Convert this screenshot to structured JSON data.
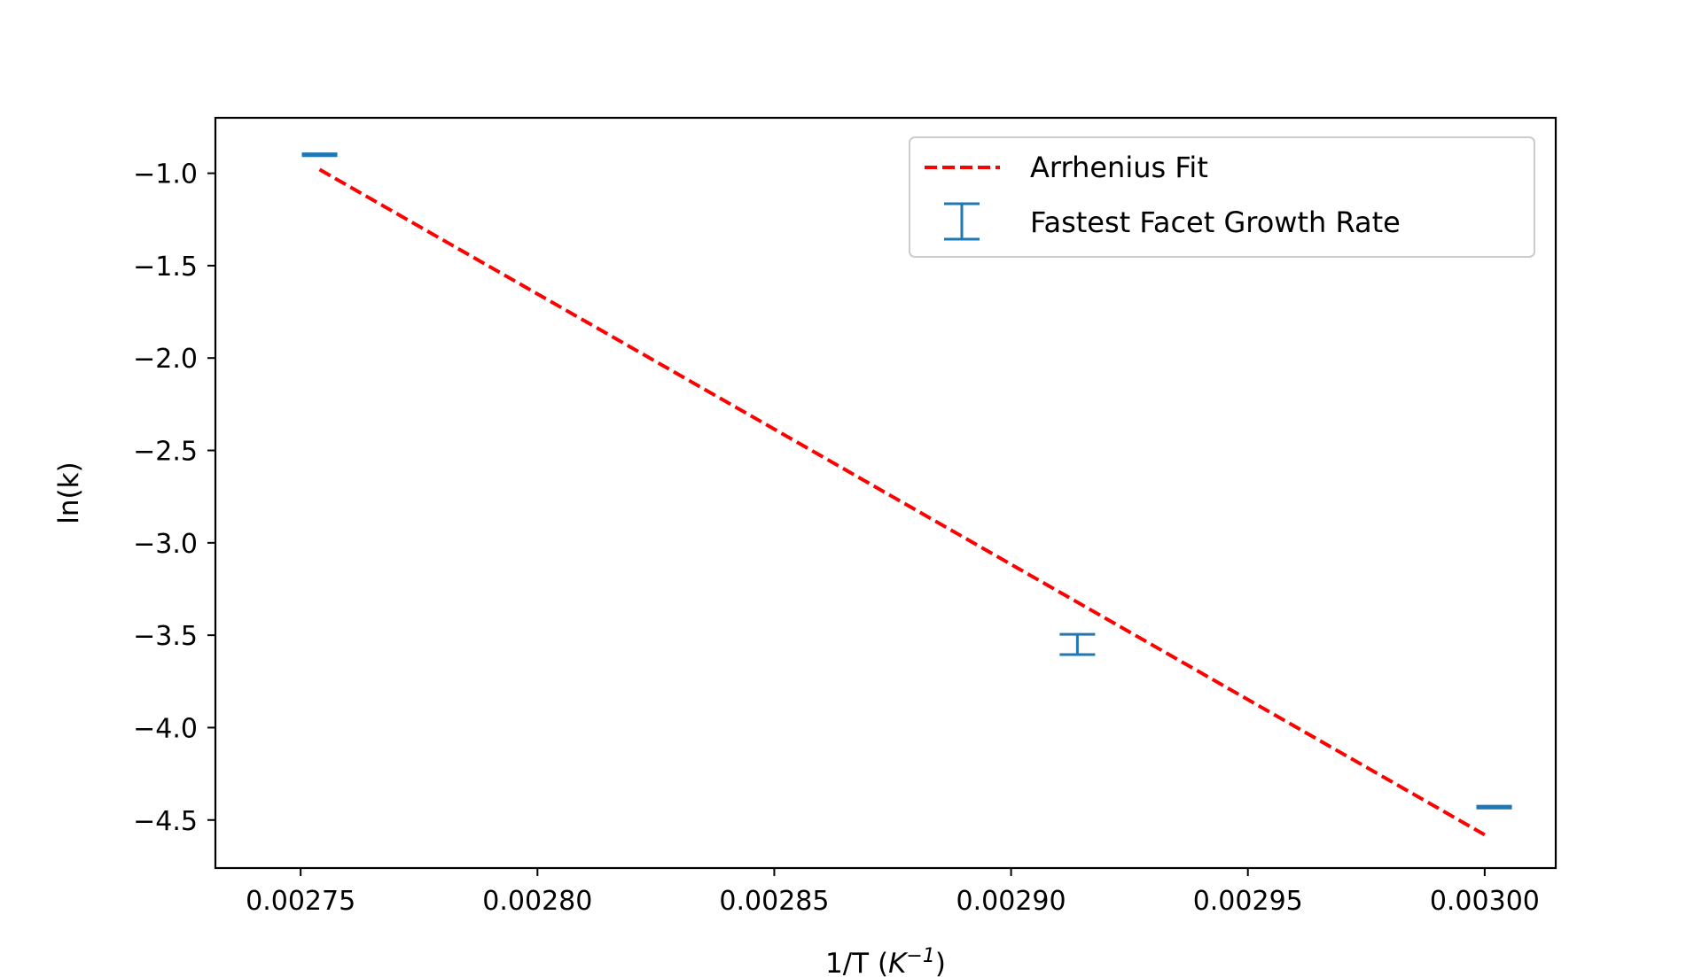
{
  "chart_data": {
    "type": "scatter",
    "xlabel": "1/T (K⁻¹)",
    "xlabel_main": "1/T (",
    "xlabel_unit_base": "K",
    "xlabel_unit_exp": "−1",
    "xlabel_close": ")",
    "ylabel": "ln(k)",
    "xlim": [
      0.002732,
      0.003015
    ],
    "ylim": [
      -4.76,
      -0.7
    ],
    "x_ticks": [
      {
        "value": 0.00275,
        "label": "0.00275"
      },
      {
        "value": 0.0028,
        "label": "0.00280"
      },
      {
        "value": 0.00285,
        "label": "0.00285"
      },
      {
        "value": 0.0029,
        "label": "0.00290"
      },
      {
        "value": 0.00295,
        "label": "0.00295"
      },
      {
        "value": 0.003,
        "label": "0.00300"
      }
    ],
    "y_ticks": [
      {
        "value": -1.0,
        "label": "−1.0"
      },
      {
        "value": -1.5,
        "label": "−1.5"
      },
      {
        "value": -2.0,
        "label": "−2.0"
      },
      {
        "value": -2.5,
        "label": "−2.5"
      },
      {
        "value": -3.0,
        "label": "−3.0"
      },
      {
        "value": -3.5,
        "label": "−3.5"
      },
      {
        "value": -4.0,
        "label": "−4.0"
      },
      {
        "value": -4.5,
        "label": "−4.5"
      }
    ],
    "grid": false,
    "legend_placement": "top-right",
    "series": [
      {
        "name": "Arrhenius Fit",
        "kind": "line",
        "style": "dashed",
        "color": "#ff0000",
        "x": [
          0.002754,
          0.003
        ],
        "y": [
          -0.98,
          -4.58
        ]
      },
      {
        "name": "Fastest Facet Growth Rate",
        "kind": "errorbar",
        "color": "#1f77b4",
        "points": [
          {
            "x": 0.002754,
            "y": -0.9,
            "err": 0.005
          },
          {
            "x": 0.002914,
            "y": -3.55,
            "err": 0.055
          },
          {
            "x": 0.003002,
            "y": -4.43,
            "err": 0.005
          }
        ]
      }
    ]
  }
}
